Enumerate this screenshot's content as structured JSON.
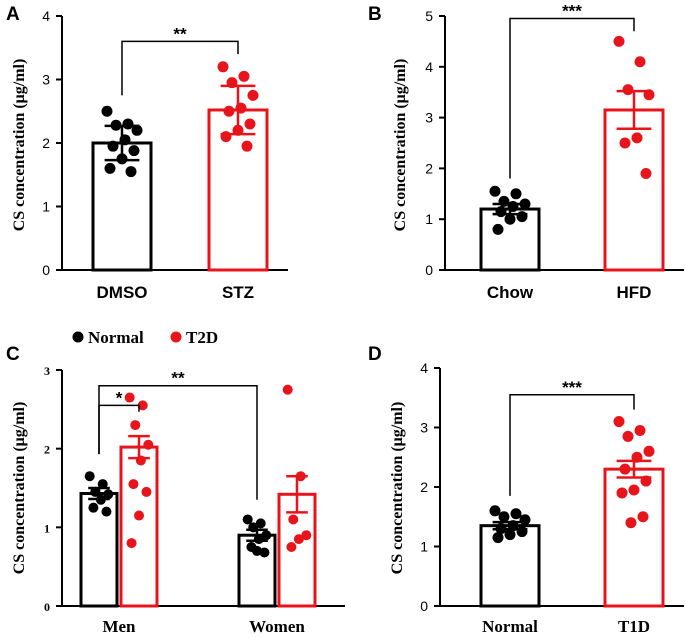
{
  "chart_data": [
    {
      "panel": "A",
      "type": "bar",
      "ylabel": "CS concentration (μg/ml)",
      "ylim": [
        0,
        4
      ],
      "yticks": [
        0,
        1,
        2,
        3,
        4
      ],
      "categories": [
        "DMSO",
        "STZ"
      ],
      "colors": [
        "#000000",
        "#e8141b"
      ],
      "values": [
        2.0,
        2.52
      ],
      "errors": [
        0.27,
        0.38
      ],
      "points": [
        [
          2.5,
          2.3,
          2.28,
          2.2,
          2.05,
          1.95,
          1.88,
          1.75,
          1.6,
          1.55
        ],
        [
          3.2,
          3.05,
          2.95,
          2.75,
          2.55,
          2.5,
          2.3,
          2.2,
          2.1,
          1.95
        ]
      ],
      "significance": [
        {
          "from": 0,
          "to": 1,
          "label": "**",
          "y": 3.6
        }
      ]
    },
    {
      "panel": "B",
      "type": "bar",
      "ylabel": "CS concentration (μg/ml)",
      "ylim": [
        0,
        5
      ],
      "yticks": [
        0,
        1,
        2,
        3,
        4,
        5
      ],
      "categories": [
        "Chow",
        "HFD"
      ],
      "colors": [
        "#000000",
        "#e8141b"
      ],
      "values": [
        1.2,
        3.15
      ],
      "errors": [
        0.1,
        0.37
      ],
      "points": [
        [
          1.55,
          1.5,
          1.35,
          1.3,
          1.25,
          1.15,
          1.05,
          1.0,
          0.8
        ],
        [
          4.5,
          4.1,
          3.55,
          3.45,
          2.6,
          2.5,
          1.9
        ]
      ],
      "significance": [
        {
          "from": 0,
          "to": 1,
          "label": "***",
          "y": 4.95
        }
      ]
    },
    {
      "panel": "C",
      "type": "bar",
      "ylabel": "CS concentration (μg/ml)",
      "ylim": [
        0,
        3
      ],
      "yticks": [
        0,
        1,
        2,
        3
      ],
      "groups": [
        "Men",
        "Women"
      ],
      "series": [
        {
          "name": "Normal",
          "color": "#000000",
          "values": [
            1.43,
            0.9
          ],
          "errors": [
            0.07,
            0.07
          ],
          "points": [
            [
              1.65,
              1.55,
              1.45,
              1.42,
              1.35,
              1.25,
              1.2
            ],
            [
              1.1,
              1.05,
              1.0,
              0.9,
              0.85,
              0.75,
              0.68,
              0.7
            ]
          ]
        },
        {
          "name": "T2D",
          "color": "#e8141b",
          "values": [
            2.02,
            1.42
          ],
          "errors": [
            0.14,
            0.23
          ],
          "points": [
            [
              2.65,
              2.55,
              2.3,
              2.05,
              1.85,
              1.55,
              1.45,
              1.15,
              0.8
            ],
            [
              2.75,
              1.65,
              1.1,
              0.9,
              0.85,
              0.75
            ]
          ]
        }
      ],
      "legend": {
        "items": [
          "Normal",
          "T2D"
        ],
        "position": "top-left"
      },
      "significance": [
        {
          "from": [
            0,
            0
          ],
          "to": [
            0,
            1
          ],
          "label": "*",
          "y": 2.55
        },
        {
          "from": [
            0,
            0
          ],
          "to": [
            1,
            0
          ],
          "label": "**",
          "y": 2.8
        }
      ]
    },
    {
      "panel": "D",
      "type": "bar",
      "ylabel": "CS concentration (μg/ml)",
      "ylim": [
        0,
        4
      ],
      "yticks": [
        0,
        1,
        2,
        3,
        4
      ],
      "categories": [
        "Normal",
        "T1D"
      ],
      "colors": [
        "#000000",
        "#e8141b"
      ],
      "values": [
        1.35,
        2.3
      ],
      "errors": [
        0.06,
        0.14
      ],
      "points": [
        [
          1.6,
          1.55,
          1.5,
          1.45,
          1.35,
          1.3,
          1.25,
          1.2,
          1.15
        ],
        [
          3.1,
          2.95,
          2.85,
          2.6,
          2.5,
          2.3,
          2.1,
          1.95,
          1.9,
          1.5,
          1.4
        ]
      ],
      "significance": [
        {
          "from": 0,
          "to": 1,
          "label": "***",
          "y": 3.55
        }
      ]
    }
  ]
}
